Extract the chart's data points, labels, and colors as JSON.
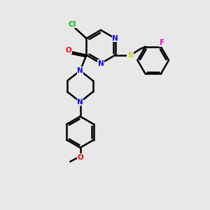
{
  "bg_color": "#e8e8e8",
  "bond_color": "#000000",
  "bond_width": 1.8,
  "atom_colors": {
    "N": "#0000ff",
    "O": "#ff0000",
    "S": "#cccc00",
    "Cl": "#00bb00",
    "F": "#ff00cc",
    "C": "#000000"
  },
  "figsize": [
    3.0,
    3.0
  ],
  "dpi": 100
}
